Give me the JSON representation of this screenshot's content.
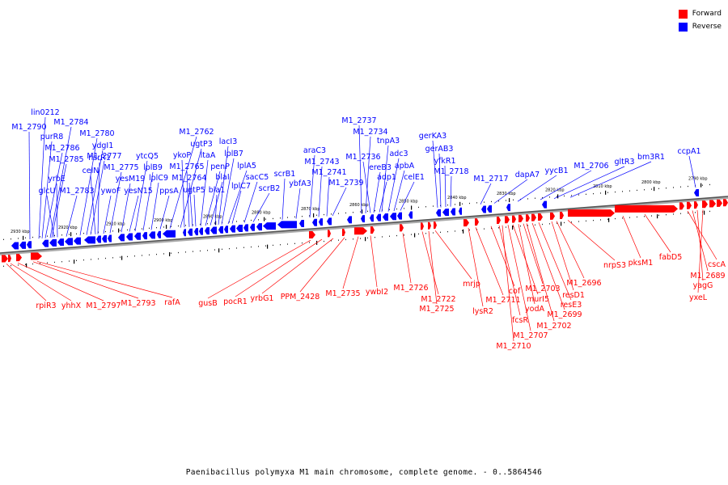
{
  "legend": {
    "forward_label": "Forward",
    "reverse_label": "Reverse",
    "forward_color": "#ff0000",
    "reverse_color": "#0000ff"
  },
  "caption": "Paenibacillus polymyxa M1 main chromosome, complete genome. - 0..5864546",
  "ruler_ticks": [
    "2930 kbp",
    "2920 kbp",
    "2910 kbp",
    "2900 kbp",
    "2890 kbp",
    "2880 kbp",
    "2870 kbp",
    "2860 kbp",
    "2850 kbp",
    "2840 kbp",
    "2830 kbp",
    "2820 kbp",
    "2810 kbp",
    "2800 kbp",
    "2790 kbp"
  ],
  "reverse_genes": [
    "M1_2790",
    "lin0212",
    "purR8",
    "M1_2784",
    "M1_2786",
    "M1_2785",
    "yrbE",
    "glcU",
    "M1_2783",
    "M1_2780",
    "ydgI1",
    "M1_2777",
    "celN",
    "nsrR1",
    "ywoF",
    "M1_2775",
    "yesM19",
    "yesN15",
    "ytcQ5",
    "lplB9",
    "lplC9",
    "ppsA",
    "M1_2762",
    "ugtP3",
    "ykoP",
    "M1_2765",
    "M1_2764",
    "ugtP5",
    "ltaA",
    "penP",
    "blaI",
    "bla1",
    "lacI3",
    "lplB7",
    "lplA5",
    "lplC7",
    "sacC5",
    "scrB2",
    "scrB1",
    "ybfA3",
    "araC3",
    "M1_2743",
    "M1_2741",
    "M1_2739",
    "M1_2737",
    "M1_2734",
    "M1_2736",
    "ereB3",
    "adp1",
    "tnpA3",
    "adc3",
    "apbA",
    "celE1",
    "gerKA3",
    "gerAB3",
    "yfkR1",
    "M1_2718",
    "M1_2717",
    "dapA7",
    "yycB1",
    "M1_2706",
    "gltR3",
    "bm3R1",
    "ccpA1"
  ],
  "forward_genes": [
    "rpiR3",
    "yhhX",
    "M1_2797",
    "M1_2793",
    "rafA",
    "gusB",
    "pocR1",
    "yrbG1",
    "PPM_2428",
    "M1_2735",
    "ywbI2",
    "M1_2726",
    "M1_2722",
    "M1_2725",
    "mrjp",
    "lysR2",
    "M1_2711",
    "cof",
    "fcsR",
    "M1_2710",
    "M1_2707",
    "murI5",
    "yodA",
    "M1_2703",
    "M1_2702",
    "M1_2699",
    "resE3",
    "resD1",
    "M1_2696",
    "nrpS3",
    "pksM1",
    "fabD5",
    "cscA",
    "M1_2689",
    "yagG",
    "yxeL"
  ]
}
